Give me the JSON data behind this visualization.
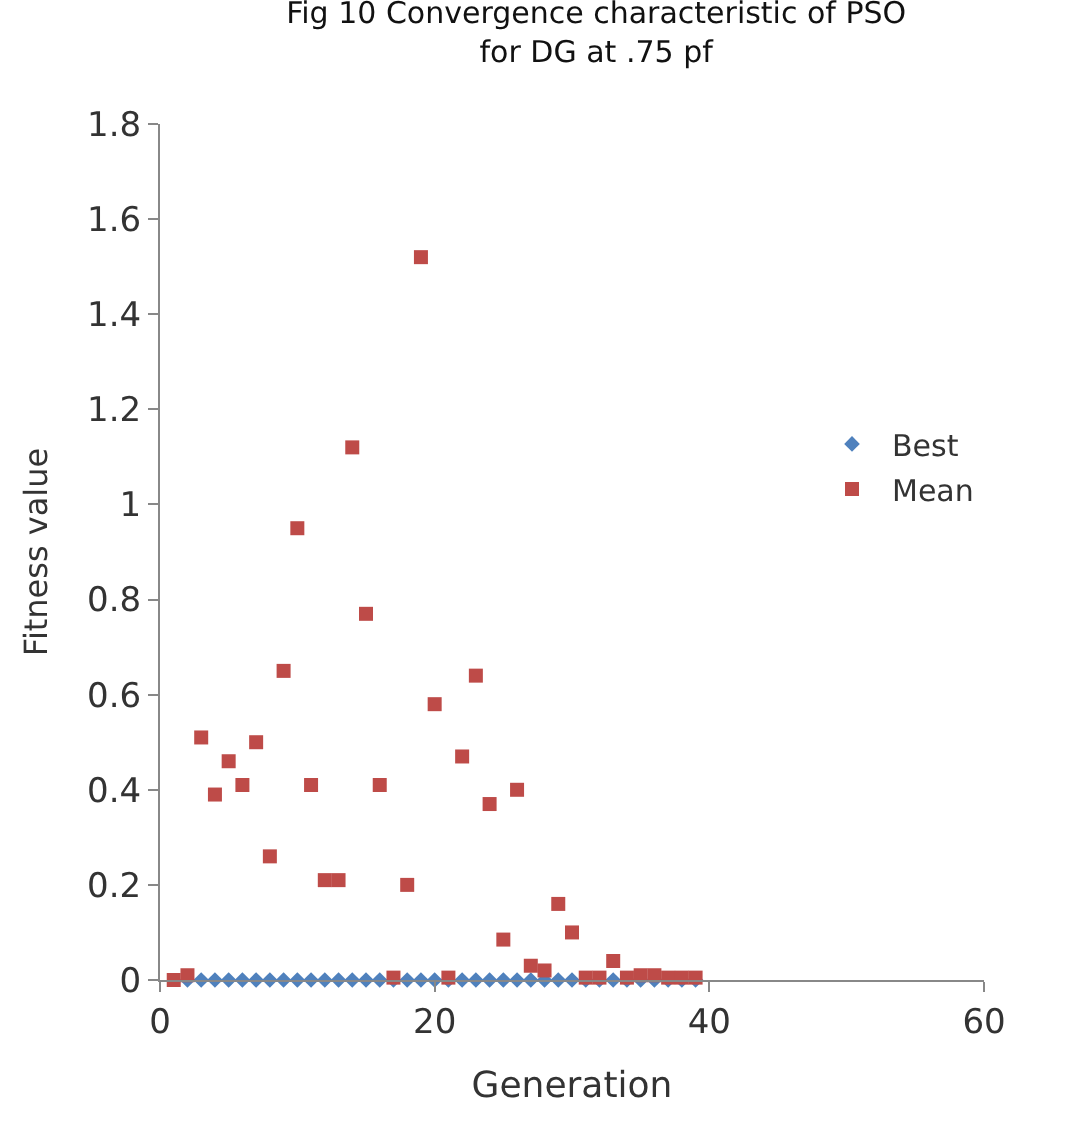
{
  "chart_data": {
    "type": "scatter",
    "title": "Fig 10 Convergence characteristic of PSO\nfor DG at .75 pf",
    "xlabel": "Generation",
    "ylabel": "Fitness value",
    "x": [
      1,
      2,
      3,
      4,
      5,
      6,
      7,
      8,
      9,
      10,
      11,
      12,
      13,
      14,
      15,
      16,
      17,
      18,
      19,
      20,
      21,
      22,
      23,
      24,
      25,
      26,
      27,
      28,
      29,
      30,
      31,
      32,
      33,
      34,
      35,
      36,
      37,
      38,
      39
    ],
    "series": [
      {
        "name": "Best",
        "color": "#4f81bd",
        "marker": "diamond",
        "values": [
          null,
          0,
          0,
          0,
          0,
          0,
          0,
          0,
          0,
          0,
          0,
          0,
          0,
          0,
          0,
          0,
          0,
          0,
          0,
          0,
          0,
          0,
          0,
          0,
          0,
          0,
          0,
          0,
          0,
          0,
          0,
          0,
          0,
          0,
          0,
          0,
          0,
          0,
          0
        ]
      },
      {
        "name": "Mean",
        "color": "#be4b48",
        "marker": "square",
        "values": [
          0,
          0.01,
          0.51,
          0.39,
          0.46,
          0.41,
          0.5,
          0.26,
          0.65,
          0.95,
          0.41,
          0.21,
          0.21,
          1.12,
          0.77,
          0.41,
          0.005,
          0.2,
          1.52,
          0.58,
          0.005,
          0.47,
          0.64,
          0.37,
          0.085,
          0.4,
          0.03,
          0.02,
          0.16,
          0.1,
          0.005,
          0.005,
          0.04,
          0.005,
          0.01,
          0.01,
          0.005,
          0.005,
          0.005
        ]
      }
    ],
    "xlim": [
      0,
      60
    ],
    "xticks": [
      0,
      20,
      40,
      60
    ],
    "ylim": [
      0,
      1.8
    ],
    "yticks": [
      0,
      {
        "value": 0.2,
        "label": "0.2"
      },
      {
        "value": 0.4,
        "label": "0.4"
      },
      {
        "value": 0.6,
        "label": "0.6"
      },
      {
        "value": 0.8,
        "label": "0.8"
      },
      1,
      {
        "value": 1.2,
        "label": "1.2"
      },
      {
        "value": 1.4,
        "label": "1.4"
      },
      {
        "value": 1.6,
        "label": "1.6"
      },
      {
        "value": 1.8,
        "label": "1.8"
      }
    ],
    "legend": "right"
  }
}
